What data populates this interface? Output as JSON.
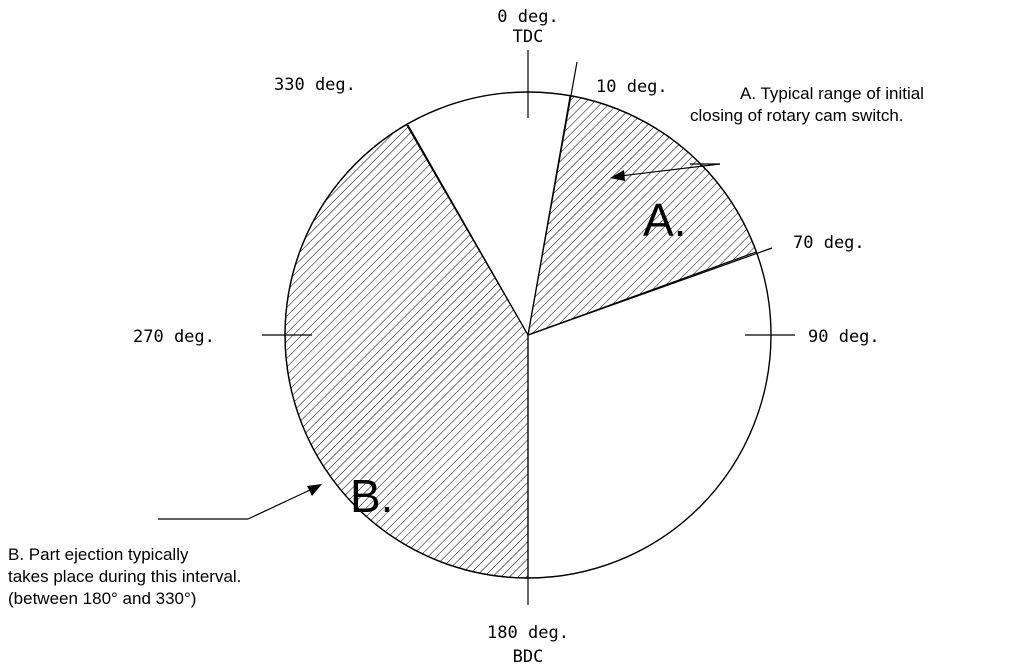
{
  "diagram": {
    "center_labels": {
      "tdc_deg": "0 deg.",
      "tdc": "TDC",
      "bdc_deg": "180 deg.",
      "bdc": "BDC"
    },
    "angle_labels": {
      "a10": "10 deg.",
      "a70": "70 deg.",
      "a90": "90 deg.",
      "a270": "270 deg.",
      "a330": "330 deg."
    },
    "region_a": {
      "letter": "A.",
      "note_line1": "A.  Typical range of initial",
      "note_line2": "closing of rotary cam switch."
    },
    "region_b": {
      "letter": "B.",
      "note_line1": "B.  Part ejection typically",
      "note_line2": "takes place during this interval.",
      "note_line3": "(between 180° and 330°)"
    }
  }
}
